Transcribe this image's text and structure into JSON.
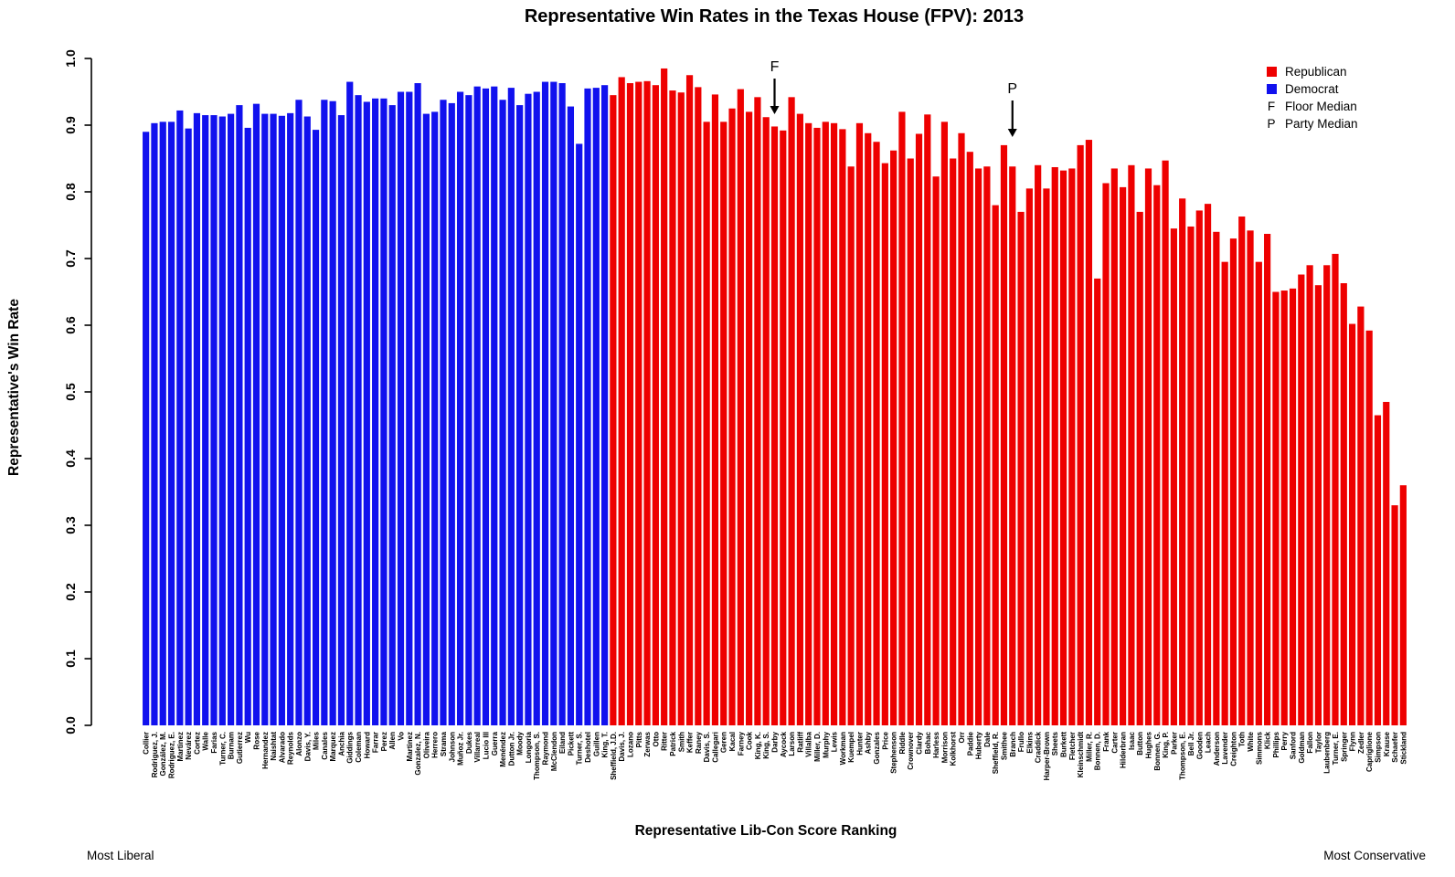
{
  "title": "Representative Win Rates in the Texas House (FPV): 2013",
  "y_axis": {
    "label": "Representative's Win Rate",
    "ticks": [
      "0.0",
      "0.1",
      "0.2",
      "0.3",
      "0.4",
      "0.5",
      "0.6",
      "0.7",
      "0.8",
      "0.9",
      "1.0"
    ]
  },
  "x_axis": {
    "label": "Representative Lib-Con Score Ranking",
    "left_caption": "Most Liberal",
    "right_caption": "Most Conservative"
  },
  "legend": {
    "republican_label": "Republican",
    "democrat_label": "Democrat",
    "floor_symbol": "F",
    "floor_label": "Floor Median",
    "party_symbol": "P",
    "party_label": "Party Median"
  },
  "annotations": {
    "floor_median": {
      "symbol": "F",
      "bar": "Darby"
    },
    "party_median": {
      "symbol": "P",
      "bar": "Branch"
    }
  },
  "colors": {
    "republican": "#EE0000",
    "democrat": "#1111EE",
    "axis": "#000000"
  },
  "chart_data": {
    "type": "bar",
    "title": "Representative Win Rates in the Texas House (FPV): 2013",
    "xlabel": "Representative Lib-Con Score Ranking",
    "ylabel": "Representative's Win Rate",
    "ylim": [
      0,
      1
    ],
    "grid": false,
    "legend_position": "top-right",
    "bars": [
      {
        "name": "Collier",
        "party": "D",
        "value": 0.89
      },
      {
        "name": "Rodriguez, J.",
        "party": "D",
        "value": 0.903
      },
      {
        "name": "González, M.",
        "party": "D",
        "value": 0.905
      },
      {
        "name": "Rodriguez, E.",
        "party": "D",
        "value": 0.905
      },
      {
        "name": "Martinez",
        "party": "D",
        "value": 0.922
      },
      {
        "name": "Nevárez",
        "party": "D",
        "value": 0.895
      },
      {
        "name": "Cortez",
        "party": "D",
        "value": 0.918
      },
      {
        "name": "Walle",
        "party": "D",
        "value": 0.915
      },
      {
        "name": "Farias",
        "party": "D",
        "value": 0.915
      },
      {
        "name": "Turner, C.",
        "party": "D",
        "value": 0.913
      },
      {
        "name": "Burnam",
        "party": "D",
        "value": 0.917
      },
      {
        "name": "Gutierrez",
        "party": "D",
        "value": 0.93
      },
      {
        "name": "Wu",
        "party": "D",
        "value": 0.896
      },
      {
        "name": "Rose",
        "party": "D",
        "value": 0.932
      },
      {
        "name": "Hernandez",
        "party": "D",
        "value": 0.917
      },
      {
        "name": "Naishtat",
        "party": "D",
        "value": 0.917
      },
      {
        "name": "Alvarado",
        "party": "D",
        "value": 0.914
      },
      {
        "name": "Reynolds",
        "party": "D",
        "value": 0.918
      },
      {
        "name": "Alonzo",
        "party": "D",
        "value": 0.938
      },
      {
        "name": "Davis, Y.",
        "party": "D",
        "value": 0.913
      },
      {
        "name": "Miles",
        "party": "D",
        "value": 0.893
      },
      {
        "name": "Canales",
        "party": "D",
        "value": 0.938
      },
      {
        "name": "Marquez",
        "party": "D",
        "value": 0.936
      },
      {
        "name": "Anchia",
        "party": "D",
        "value": 0.915
      },
      {
        "name": "Giddings",
        "party": "D",
        "value": 0.965
      },
      {
        "name": "Coleman",
        "party": "D",
        "value": 0.945
      },
      {
        "name": "Howard",
        "party": "D",
        "value": 0.935
      },
      {
        "name": "Farrar",
        "party": "D",
        "value": 0.94
      },
      {
        "name": "Perez",
        "party": "D",
        "value": 0.94
      },
      {
        "name": "Allen",
        "party": "D",
        "value": 0.93
      },
      {
        "name": "Vo",
        "party": "D",
        "value": 0.95
      },
      {
        "name": "Martinez",
        "party": "D",
        "value": 0.95
      },
      {
        "name": "Gonzalez, N.",
        "party": "D",
        "value": 0.963
      },
      {
        "name": "Oliveira",
        "party": "D",
        "value": 0.917
      },
      {
        "name": "Herrero",
        "party": "D",
        "value": 0.92
      },
      {
        "name": "Strama",
        "party": "D",
        "value": 0.938
      },
      {
        "name": "Johnson",
        "party": "D",
        "value": 0.933
      },
      {
        "name": "Muñoz Jr.",
        "party": "D",
        "value": 0.95
      },
      {
        "name": "Dukes",
        "party": "D",
        "value": 0.945
      },
      {
        "name": "Villarreal",
        "party": "D",
        "value": 0.958
      },
      {
        "name": "Lucio III",
        "party": "D",
        "value": 0.955
      },
      {
        "name": "Guerra",
        "party": "D",
        "value": 0.958
      },
      {
        "name": "Menéndez",
        "party": "D",
        "value": 0.938
      },
      {
        "name": "Dutton Jr.",
        "party": "D",
        "value": 0.956
      },
      {
        "name": "Moody",
        "party": "D",
        "value": 0.93
      },
      {
        "name": "Longoria",
        "party": "D",
        "value": 0.947
      },
      {
        "name": "Thompson, S.",
        "party": "D",
        "value": 0.95
      },
      {
        "name": "Raymond",
        "party": "D",
        "value": 0.965
      },
      {
        "name": "McClendon",
        "party": "D",
        "value": 0.965
      },
      {
        "name": "Eiland",
        "party": "D",
        "value": 0.963
      },
      {
        "name": "Pickett",
        "party": "D",
        "value": 0.928
      },
      {
        "name": "Turner, S.",
        "party": "D",
        "value": 0.872
      },
      {
        "name": "Deshotel",
        "party": "D",
        "value": 0.955
      },
      {
        "name": "Guillen",
        "party": "D",
        "value": 0.956
      },
      {
        "name": "King, T.",
        "party": "D",
        "value": 0.96
      },
      {
        "name": "Sheffield, J.D.",
        "party": "R",
        "value": 0.945
      },
      {
        "name": "Davis, J.",
        "party": "R",
        "value": 0.972
      },
      {
        "name": "Lozano",
        "party": "R",
        "value": 0.963
      },
      {
        "name": "Pitts",
        "party": "R",
        "value": 0.965
      },
      {
        "name": "Zerwas",
        "party": "R",
        "value": 0.966
      },
      {
        "name": "Otto",
        "party": "R",
        "value": 0.96
      },
      {
        "name": "Ritter",
        "party": "R",
        "value": 0.985
      },
      {
        "name": "Patrick",
        "party": "R",
        "value": 0.952
      },
      {
        "name": "Smith",
        "party": "R",
        "value": 0.949
      },
      {
        "name": "Keffer",
        "party": "R",
        "value": 0.975
      },
      {
        "name": "Raney",
        "party": "R",
        "value": 0.957
      },
      {
        "name": "Davis, S.",
        "party": "R",
        "value": 0.905
      },
      {
        "name": "Callegari",
        "party": "R",
        "value": 0.946
      },
      {
        "name": "Geren",
        "party": "R",
        "value": 0.905
      },
      {
        "name": "Kacal",
        "party": "R",
        "value": 0.925
      },
      {
        "name": "Farney",
        "party": "R",
        "value": 0.954
      },
      {
        "name": "Cook",
        "party": "R",
        "value": 0.92
      },
      {
        "name": "King, K.",
        "party": "R",
        "value": 0.942
      },
      {
        "name": "King, S.",
        "party": "R",
        "value": 0.912
      },
      {
        "name": "Darby",
        "party": "R",
        "value": 0.898
      },
      {
        "name": "Aycock",
        "party": "R",
        "value": 0.892
      },
      {
        "name": "Larson",
        "party": "R",
        "value": 0.942
      },
      {
        "name": "Ratliff",
        "party": "R",
        "value": 0.917
      },
      {
        "name": "Villalba",
        "party": "R",
        "value": 0.903
      },
      {
        "name": "Miller, D.",
        "party": "R",
        "value": 0.896
      },
      {
        "name": "Murphy",
        "party": "R",
        "value": 0.905
      },
      {
        "name": "Lewis",
        "party": "R",
        "value": 0.903
      },
      {
        "name": "Workman",
        "party": "R",
        "value": 0.894
      },
      {
        "name": "Kuempel",
        "party": "R",
        "value": 0.838
      },
      {
        "name": "Hunter",
        "party": "R",
        "value": 0.903
      },
      {
        "name": "Ashby",
        "party": "R",
        "value": 0.888
      },
      {
        "name": "Gonzales",
        "party": "R",
        "value": 0.875
      },
      {
        "name": "Price",
        "party": "R",
        "value": 0.843
      },
      {
        "name": "Stephenson",
        "party": "R",
        "value": 0.862
      },
      {
        "name": "Riddle",
        "party": "R",
        "value": 0.92
      },
      {
        "name": "Crownover",
        "party": "R",
        "value": 0.85
      },
      {
        "name": "Clardy",
        "party": "R",
        "value": 0.887
      },
      {
        "name": "Bohac",
        "party": "R",
        "value": 0.916
      },
      {
        "name": "Harless",
        "party": "R",
        "value": 0.823
      },
      {
        "name": "Morrison",
        "party": "R",
        "value": 0.905
      },
      {
        "name": "Kolkhorst",
        "party": "R",
        "value": 0.85
      },
      {
        "name": "Orr",
        "party": "R",
        "value": 0.888
      },
      {
        "name": "Paddie",
        "party": "R",
        "value": 0.86
      },
      {
        "name": "Huberty",
        "party": "R",
        "value": 0.835
      },
      {
        "name": "Dale",
        "party": "R",
        "value": 0.838
      },
      {
        "name": "Sheffield, R.",
        "party": "R",
        "value": 0.78
      },
      {
        "name": "Smithee",
        "party": "R",
        "value": 0.87
      },
      {
        "name": "Branch",
        "party": "R",
        "value": 0.838
      },
      {
        "name": "Frullo",
        "party": "R",
        "value": 0.77
      },
      {
        "name": "Elkins",
        "party": "R",
        "value": 0.805
      },
      {
        "name": "Craddick",
        "party": "R",
        "value": 0.84
      },
      {
        "name": "Harper-Brown",
        "party": "R",
        "value": 0.805
      },
      {
        "name": "Sheets",
        "party": "R",
        "value": 0.837
      },
      {
        "name": "Burkett",
        "party": "R",
        "value": 0.832
      },
      {
        "name": "Fletcher",
        "party": "R",
        "value": 0.835
      },
      {
        "name": "Kleinschmidt",
        "party": "R",
        "value": 0.87
      },
      {
        "name": "Miller, R.",
        "party": "R",
        "value": 0.878
      },
      {
        "name": "Bonnen, D.",
        "party": "R",
        "value": 0.67
      },
      {
        "name": "Frank",
        "party": "R",
        "value": 0.813
      },
      {
        "name": "Carter",
        "party": "R",
        "value": 0.835
      },
      {
        "name": "Hilderbran",
        "party": "R",
        "value": 0.807
      },
      {
        "name": "Isaac",
        "party": "R",
        "value": 0.84
      },
      {
        "name": "Button",
        "party": "R",
        "value": 0.77
      },
      {
        "name": "Hughes",
        "party": "R",
        "value": 0.835
      },
      {
        "name": "Bonnen, G.",
        "party": "R",
        "value": 0.81
      },
      {
        "name": "King, P.",
        "party": "R",
        "value": 0.847
      },
      {
        "name": "Parker",
        "party": "R",
        "value": 0.745
      },
      {
        "name": "Thompson, E.",
        "party": "R",
        "value": 0.79
      },
      {
        "name": "Bell Jr.",
        "party": "R",
        "value": 0.748
      },
      {
        "name": "Gooden",
        "party": "R",
        "value": 0.772
      },
      {
        "name": "Leach",
        "party": "R",
        "value": 0.782
      },
      {
        "name": "Anderson",
        "party": "R",
        "value": 0.74
      },
      {
        "name": "Lavender",
        "party": "R",
        "value": 0.695
      },
      {
        "name": "Creighton",
        "party": "R",
        "value": 0.73
      },
      {
        "name": "Toth",
        "party": "R",
        "value": 0.763
      },
      {
        "name": "White",
        "party": "R",
        "value": 0.742
      },
      {
        "name": "Simmons",
        "party": "R",
        "value": 0.695
      },
      {
        "name": "Klick",
        "party": "R",
        "value": 0.737
      },
      {
        "name": "Phillips",
        "party": "R",
        "value": 0.65
      },
      {
        "name": "Perry",
        "party": "R",
        "value": 0.652
      },
      {
        "name": "Sanford",
        "party": "R",
        "value": 0.655
      },
      {
        "name": "Goldman",
        "party": "R",
        "value": 0.676
      },
      {
        "name": "Fallon",
        "party": "R",
        "value": 0.69
      },
      {
        "name": "Taylor",
        "party": "R",
        "value": 0.66
      },
      {
        "name": "Laubenberg",
        "party": "R",
        "value": 0.69
      },
      {
        "name": "Turner, E.",
        "party": "R",
        "value": 0.707
      },
      {
        "name": "Springer",
        "party": "R",
        "value": 0.663
      },
      {
        "name": "Flynn",
        "party": "R",
        "value": 0.602
      },
      {
        "name": "Zedler",
        "party": "R",
        "value": 0.628
      },
      {
        "name": "Capriglione",
        "party": "R",
        "value": 0.592
      },
      {
        "name": "Simpson",
        "party": "R",
        "value": 0.465
      },
      {
        "name": "Krause",
        "party": "R",
        "value": 0.485
      },
      {
        "name": "Schaefer",
        "party": "R",
        "value": 0.33
      },
      {
        "name": "Stickland",
        "party": "R",
        "value": 0.36
      }
    ]
  }
}
